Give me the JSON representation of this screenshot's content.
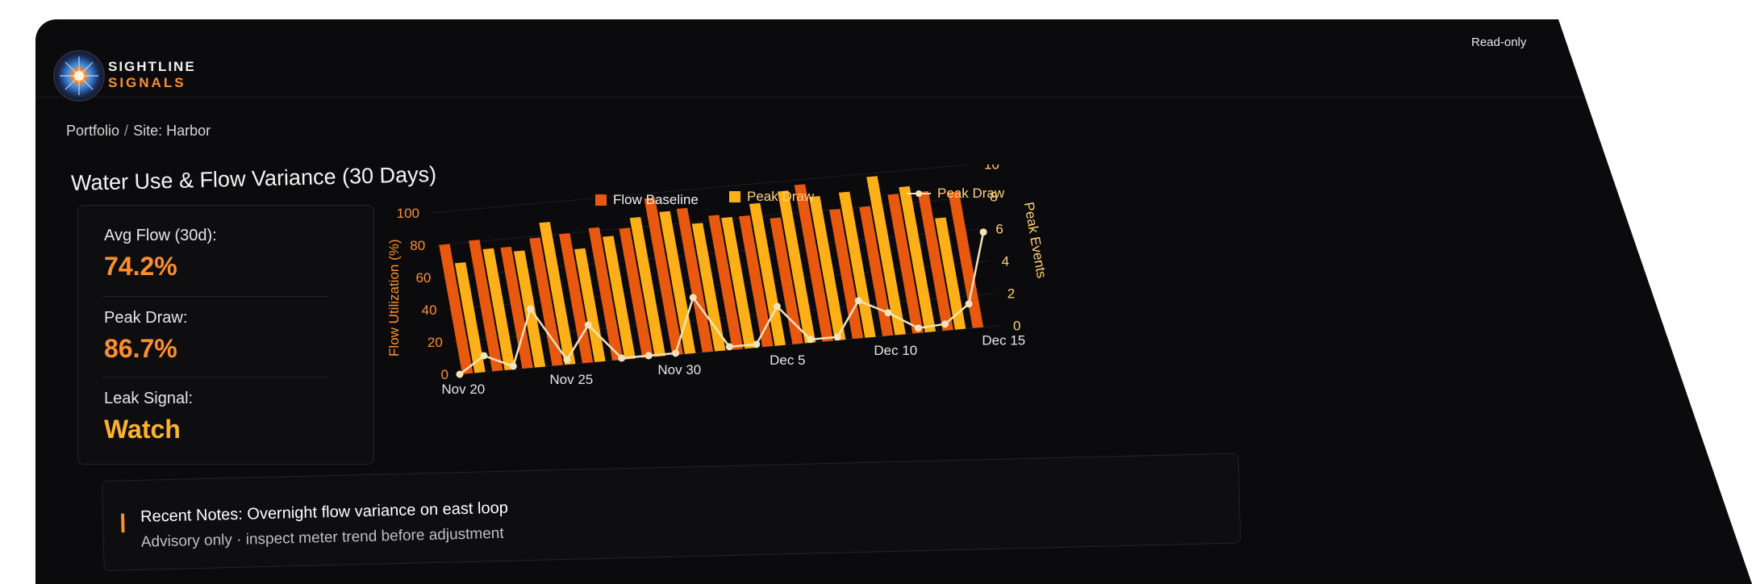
{
  "header": {
    "brand_name": "SIGHTLINE",
    "brand_sub": "SIGNALS",
    "mode": "Read-only"
  },
  "breadcrumb": {
    "root": "Portfolio",
    "separator": "/",
    "current": "Site: Harbor"
  },
  "page_title": "Water Use & Flow Variance (30 Days)",
  "kpis": [
    {
      "label": "Avg Flow (30d):",
      "value": "74.2%",
      "color": "#ff8f2e"
    },
    {
      "label": "Peak Draw:",
      "value": "86.7%",
      "color": "#ff8f2e"
    },
    {
      "label": "Leak Signal:",
      "value": "Watch",
      "color": "#ffb22c"
    }
  ],
  "notes": {
    "label": "Recent Notes:",
    "text": "Overnight flow variance on east loop",
    "subtext": "Advisory only · inspect meter trend before adjustment"
  },
  "colors": {
    "baseline": "#e8580f",
    "peak": "#ffb016",
    "line": "#f3e2bb",
    "axis_left": "#ff8f2e",
    "axis_right": "#ffd27a",
    "accent": "#ff8f2e"
  },
  "chart_data": {
    "type": "bar",
    "legend": [
      "Flow Baseline",
      "Peak Draw",
      "Peak Draw"
    ],
    "ylabel": "Flow Utilization (%)",
    "y2label": "Peak Events",
    "ylim": [
      0,
      100
    ],
    "y2lim": [
      0,
      10
    ],
    "yticks": [
      0,
      20,
      40,
      60,
      80,
      100
    ],
    "y2ticks": [
      0,
      2,
      4,
      6,
      8,
      10
    ],
    "x_tick_labels": [
      "Nov 20",
      "Nov 25",
      "Nov 30",
      "Dec 5",
      "Dec 10",
      "Dec 15"
    ],
    "x_tick_days": [
      0,
      5,
      10,
      15,
      20,
      25
    ],
    "days": 26,
    "grid": true,
    "legend_position": "top",
    "series": [
      {
        "name": "Flow Baseline",
        "kind": "bar",
        "values": [
          80,
          81,
          75,
          79,
          80,
          82,
          80,
          97,
          89,
          83,
          81,
          78,
          97,
          80,
          80,
          86,
          86,
          84
        ]
      },
      {
        "name": "Peak Draw",
        "kind": "bar",
        "values": [
          68,
          75,
          72,
          88,
          70,
          76,
          86,
          88,
          79,
          81,
          88,
          94,
          89,
          90,
          98,
          90,
          69
        ]
      },
      {
        "name": "Peak Draw",
        "kind": "line",
        "values": [
          0,
          1,
          0.2,
          3.6,
          0.3,
          2.3,
          0.1,
          0.1,
          0.1,
          3.4,
          0.2,
          0.2,
          2.4,
          0.2,
          0.2,
          2.3,
          1.4,
          0.3,
          0.4,
          1.5,
          5.8
        ]
      }
    ]
  }
}
